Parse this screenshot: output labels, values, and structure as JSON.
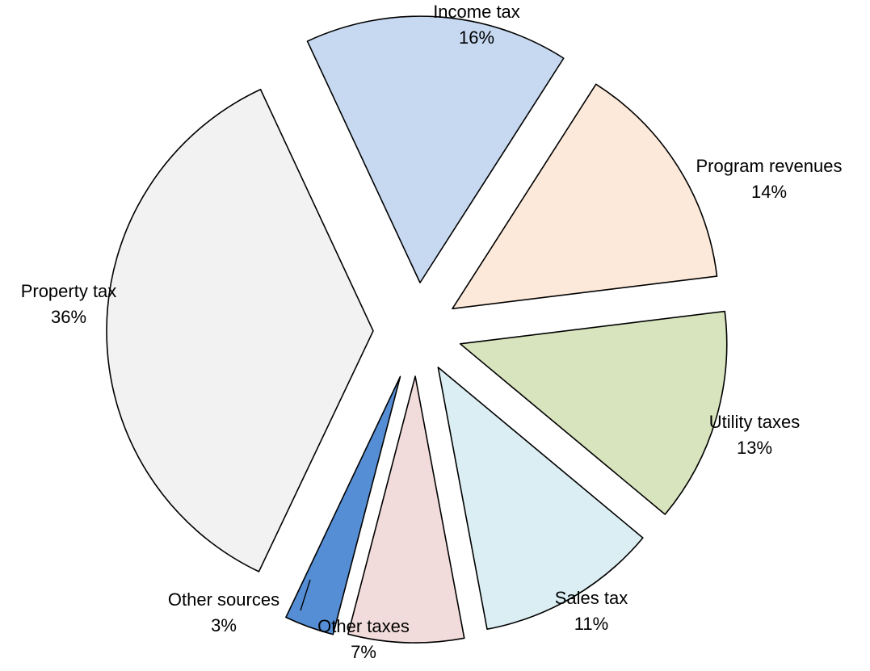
{
  "chart_data": {
    "type": "pie",
    "title": "",
    "slices": [
      {
        "name": "Income tax",
        "value": 16,
        "value_label": "16%",
        "color": "#c6d9f1"
      },
      {
        "name": "Program revenues",
        "value": 14,
        "value_label": "14%",
        "color": "#fde9d9"
      },
      {
        "name": "Utility taxes",
        "value": 13,
        "value_label": "13%",
        "color": "#d7e4bd"
      },
      {
        "name": "Sales tax",
        "value": 11,
        "value_label": "11%",
        "color": "#daeef3"
      },
      {
        "name": "Other taxes",
        "value": 7,
        "value_label": "7%",
        "color": "#f2dcdb"
      },
      {
        "name": "Other sources",
        "value": 3,
        "value_label": "3%",
        "color": "#558ed5"
      },
      {
        "name": "Property tax",
        "value": 36,
        "value_label": "36%",
        "color": "#f2f2f2"
      }
    ],
    "exploded": true,
    "legend": "none",
    "labels": "outside"
  }
}
